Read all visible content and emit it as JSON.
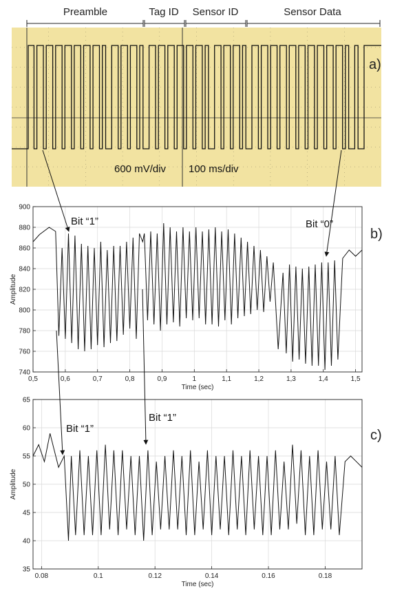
{
  "colors": {
    "scope_bg": "#f2e3a1",
    "scope_grid": "#6f6a55",
    "trace": "#111111",
    "plot_grid": "#d9d9d9"
  },
  "segments": [
    {
      "label": "Preamble"
    },
    {
      "label": "Tag ID"
    },
    {
      "label": "Sensor ID"
    },
    {
      "label": "Sensor Data"
    }
  ],
  "panels": {
    "a": "a)",
    "b": "b)",
    "c": "c)"
  },
  "scope": {
    "volt_scale": "600 mV/div",
    "time_scale": "100 ms/div",
    "bits": [
      1,
      1,
      1,
      1,
      1,
      1,
      1,
      1,
      0,
      1,
      1,
      1,
      0,
      1,
      1,
      1,
      1,
      1,
      1,
      0,
      1,
      1,
      1,
      0,
      1,
      1,
      1,
      1,
      1,
      1,
      1,
      1,
      1,
      1,
      0,
      0
    ]
  },
  "annotations": {
    "b_bit1": "Bit “1”",
    "b_bit0": "Bit “0”",
    "c_bit1_left": "Bit “1”",
    "c_bit1_right": "Bit “1”"
  },
  "chart_data": [
    {
      "type": "line",
      "panel": "b)",
      "xlabel": "Time (sec)",
      "ylabel": "Amplitude",
      "xlim": [
        0.5,
        1.52
      ],
      "ylim": [
        740,
        900
      ],
      "xticks": [
        "0,5",
        "0,6",
        "0,7",
        "0,8",
        "0,9",
        "1",
        "1,1",
        "1,2",
        "1,3",
        "1,4",
        "1,5"
      ],
      "xtick_values": [
        0.5,
        0.6,
        0.7,
        0.8,
        0.9,
        1.0,
        1.1,
        1.2,
        1.3,
        1.4,
        1.5
      ],
      "yticks": [
        740,
        760,
        780,
        800,
        820,
        840,
        860,
        880,
        900
      ],
      "grid": true,
      "series": [
        {
          "x": [
            0.5,
            0.52,
            0.55,
            0.57,
            0.58,
            0.59,
            0.6,
            0.61,
            0.62,
            0.63,
            0.64,
            0.65,
            0.66,
            0.67,
            0.68,
            0.69,
            0.7,
            0.71,
            0.72,
            0.73,
            0.74,
            0.75,
            0.76,
            0.77,
            0.78,
            0.79,
            0.8,
            0.81,
            0.82,
            0.83,
            0.84,
            0.845,
            0.855,
            0.865,
            0.875,
            0.885,
            0.895,
            0.905,
            0.915,
            0.925,
            0.935,
            0.945,
            0.955,
            0.965,
            0.975,
            0.985,
            0.995,
            1.005,
            1.015,
            1.025,
            1.035,
            1.045,
            1.055,
            1.065,
            1.075,
            1.085,
            1.095,
            1.105,
            1.115,
            1.125,
            1.135,
            1.145,
            1.155,
            1.165,
            1.175,
            1.185,
            1.195,
            1.205,
            1.215,
            1.225,
            1.235,
            1.245,
            1.26,
            1.275,
            1.285,
            1.295,
            1.305,
            1.315,
            1.325,
            1.335,
            1.345,
            1.355,
            1.365,
            1.375,
            1.385,
            1.395,
            1.405,
            1.415,
            1.425,
            1.435,
            1.445,
            1.46,
            1.48,
            1.5,
            1.52
          ],
          "y": [
            866,
            873,
            880,
            876,
            775,
            860,
            772,
            874,
            768,
            872,
            762,
            864,
            760,
            862,
            762,
            860,
            766,
            866,
            764,
            858,
            768,
            862,
            770,
            862,
            776,
            866,
            782,
            870,
            772,
            874,
            866,
            874,
            790,
            876,
            786,
            874,
            780,
            884,
            786,
            880,
            788,
            876,
            784,
            880,
            792,
            876,
            790,
            880,
            792,
            876,
            786,
            878,
            786,
            880,
            784,
            876,
            790,
            878,
            786,
            874,
            792,
            870,
            794,
            866,
            796,
            862,
            800,
            858,
            798,
            852,
            808,
            846,
            762,
            836,
            758,
            844,
            750,
            842,
            752,
            840,
            748,
            842,
            746,
            844,
            746,
            846,
            742,
            846,
            746,
            848,
            752,
            850,
            858,
            852,
            858
          ]
        }
      ]
    },
    {
      "type": "line",
      "panel": "c)",
      "xlabel": "Time (sec)",
      "ylabel": "Amplitude",
      "xlim": [
        0.077,
        0.193
      ],
      "ylim": [
        35,
        65
      ],
      "xticks": [
        "0.08",
        "0.1",
        "0.12",
        "0.14",
        "0.16",
        "0.18"
      ],
      "xtick_values": [
        0.08,
        0.1,
        0.12,
        0.14,
        0.16,
        0.18
      ],
      "yticks": [
        35,
        40,
        45,
        50,
        55,
        60,
        65
      ],
      "grid": true,
      "series": [
        {
          "x": [
            0.077,
            0.079,
            0.081,
            0.083,
            0.084,
            0.086,
            0.088,
            0.0895,
            0.0905,
            0.092,
            0.0935,
            0.095,
            0.0965,
            0.098,
            0.0995,
            0.101,
            0.1025,
            0.104,
            0.1055,
            0.107,
            0.1085,
            0.11,
            0.1115,
            0.113,
            0.1145,
            0.116,
            0.1175,
            0.119,
            0.1205,
            0.122,
            0.1235,
            0.125,
            0.1265,
            0.128,
            0.1295,
            0.131,
            0.1325,
            0.134,
            0.1355,
            0.137,
            0.1385,
            0.14,
            0.1415,
            0.143,
            0.1445,
            0.146,
            0.1475,
            0.149,
            0.1505,
            0.152,
            0.1535,
            0.155,
            0.1565,
            0.158,
            0.1595,
            0.161,
            0.1625,
            0.164,
            0.1655,
            0.167,
            0.1685,
            0.17,
            0.1715,
            0.173,
            0.1745,
            0.176,
            0.1775,
            0.179,
            0.1805,
            0.182,
            0.1835,
            0.185,
            0.187,
            0.189,
            0.191,
            0.193
          ],
          "y": [
            55,
            57,
            54,
            59,
            57,
            53,
            55,
            40,
            55,
            41,
            56,
            41,
            55,
            41,
            56,
            41,
            57,
            42,
            56,
            41,
            56,
            42,
            55,
            41,
            55,
            40,
            56,
            41,
            54,
            42,
            55,
            42,
            56,
            42,
            55,
            41,
            56,
            41,
            54,
            42,
            56,
            41,
            55,
            42,
            55,
            41,
            56,
            42,
            55,
            41,
            56,
            42,
            55,
            41,
            55,
            41,
            56,
            42,
            54,
            42,
            57,
            43,
            56,
            41,
            55,
            41,
            56,
            42,
            54,
            42,
            55,
            41,
            54,
            55,
            54,
            53
          ]
        }
      ]
    }
  ]
}
